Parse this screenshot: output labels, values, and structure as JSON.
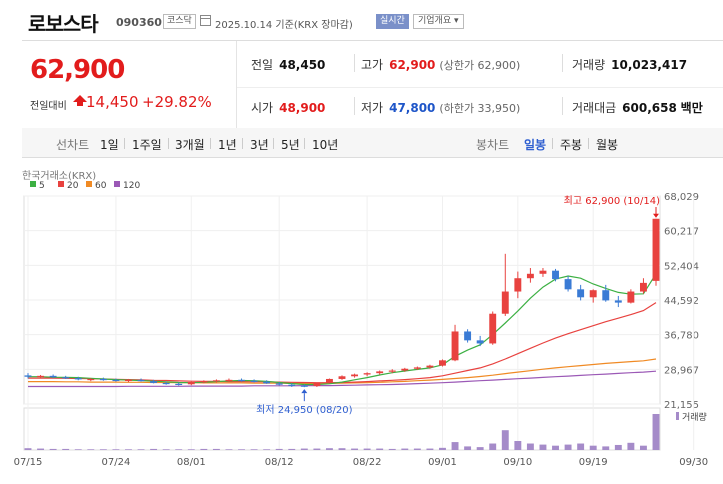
{
  "header": {
    "name": "로보스타",
    "code": "090360",
    "market_badge": "코스닥",
    "date": "2025.10.14 기준(KRX 장마감)",
    "live_label": "실시간",
    "info_label": "기업개요 ▾",
    "calendar_icon": "calendar-icon"
  },
  "summary": {
    "price": "62,900",
    "change_label": "전일대비",
    "change_amount": "14,450",
    "change_rate": "+29.82%",
    "change_direction_icon": "up-arrow-icon",
    "prev_close_label": "전일",
    "prev_close": "48,450",
    "high_label": "고가",
    "high": "62,900",
    "upper_limit": "(상한가 62,900)",
    "volume_label": "거래량",
    "volume": "10,023,417",
    "open_label": "시가",
    "open": "48,900",
    "low_label": "저가",
    "low": "47,800",
    "lower_limit": "(하한가 33,950)",
    "turnover_label": "거래대금",
    "turnover": "600,658",
    "turnover_unit": "백만"
  },
  "toolbar": {
    "line_chart": "선차트",
    "periods": [
      "1일",
      "1주일",
      "3개월",
      "1년",
      "3년",
      "5년",
      "10년"
    ],
    "candle_chart": "봉차트",
    "candle_periods": [
      "일봉",
      "주봉",
      "월봉"
    ],
    "active_candle": "일봉"
  },
  "chart_data": {
    "type": "candlestick",
    "source_label": "한국거래소(KRX)",
    "legend": [
      {
        "name": "5",
        "color": "#3cb043"
      },
      {
        "name": "20",
        "color": "#e8423f"
      },
      {
        "name": "60",
        "color": "#f08a24"
      },
      {
        "name": "120",
        "color": "#9b59b6"
      }
    ],
    "y_ticks": [
      "68,029",
      "60,217",
      "52,404",
      "44,592",
      "36,780",
      "28,967",
      "21,155"
    ],
    "ylim": [
      21155,
      68029
    ],
    "x_ticks": [
      "07/15",
      "07/24",
      "08/01",
      "08/12",
      "08/22",
      "09/01",
      "09/10",
      "09/19",
      "09/30"
    ],
    "x_tick_index": [
      0,
      7,
      13,
      20,
      27,
      33,
      39,
      45,
      53
    ],
    "high_annotation": "최고 62,900 (10/14)",
    "low_annotation": "최저 24,950 (08/20)",
    "volume_label": "거래량",
    "candles": [
      [
        27600,
        28100,
        26900,
        27300
      ],
      [
        27300,
        27700,
        26900,
        27500
      ],
      [
        27500,
        27800,
        27000,
        27200
      ],
      [
        27200,
        27500,
        26800,
        27000
      ],
      [
        27000,
        27300,
        26500,
        26700
      ],
      [
        26700,
        27000,
        26300,
        26800
      ],
      [
        26800,
        27100,
        26400,
        26600
      ],
      [
        26600,
        26900,
        26200,
        26400
      ],
      [
        26400,
        26800,
        26100,
        26600
      ],
      [
        26600,
        26900,
        26200,
        26300
      ],
      [
        26300,
        26600,
        25800,
        25900
      ],
      [
        25900,
        26200,
        25500,
        25700
      ],
      [
        25700,
        26000,
        25300,
        25600
      ],
      [
        25600,
        26200,
        25400,
        26100
      ],
      [
        26100,
        26500,
        25800,
        26300
      ],
      [
        26300,
        26700,
        26000,
        26500
      ],
      [
        26500,
        26900,
        26200,
        26600
      ],
      [
        26600,
        26900,
        26200,
        26400
      ],
      [
        26400,
        26700,
        26000,
        26200
      ],
      [
        26200,
        26500,
        25700,
        25800
      ],
      [
        25800,
        26100,
        25300,
        25500
      ],
      [
        25500,
        25800,
        25000,
        25300
      ],
      [
        25300,
        25600,
        24950,
        25200
      ],
      [
        25200,
        26000,
        25000,
        25900
      ],
      [
        25900,
        26900,
        25800,
        26800
      ],
      [
        26800,
        27600,
        26600,
        27400
      ],
      [
        27400,
        28000,
        27100,
        27800
      ],
      [
        27800,
        28300,
        27400,
        28100
      ],
      [
        28100,
        28700,
        27800,
        28500
      ],
      [
        28500,
        29000,
        28100,
        28700
      ],
      [
        28700,
        29300,
        28400,
        29100
      ],
      [
        29100,
        29600,
        28800,
        29400
      ],
      [
        29400,
        30000,
        29100,
        29800
      ],
      [
        29800,
        31200,
        29600,
        31000
      ],
      [
        31000,
        39000,
        30800,
        37500
      ],
      [
        37500,
        38000,
        35000,
        35500
      ],
      [
        35500,
        36500,
        34200,
        34800
      ],
      [
        34800,
        42000,
        34500,
        41500
      ],
      [
        41500,
        55000,
        41000,
        46500
      ],
      [
        46500,
        51000,
        45000,
        49500
      ],
      [
        49500,
        51800,
        48500,
        50500
      ],
      [
        50500,
        51800,
        49800,
        51200
      ],
      [
        51200,
        51600,
        48800,
        49300
      ],
      [
        49300,
        50000,
        46500,
        47000
      ],
      [
        47000,
        48000,
        44500,
        45200
      ],
      [
        45200,
        47000,
        44000,
        46800
      ],
      [
        46800,
        48000,
        44200,
        44500
      ],
      [
        44500,
        45500,
        43000,
        44000
      ],
      [
        44000,
        47000,
        43800,
        46500
      ],
      [
        46500,
        49500,
        46000,
        48450
      ],
      [
        48900,
        62900,
        47800,
        62900
      ]
    ],
    "ma5": [
      27300,
      27300,
      27200,
      27150,
      27100,
      26950,
      26800,
      26650,
      26550,
      26450,
      26300,
      26150,
      26000,
      25950,
      26050,
      26200,
      26350,
      26450,
      26400,
      26250,
      26000,
      25750,
      25550,
      25550,
      25700,
      26100,
      26600,
      27100,
      27700,
      28200,
      28600,
      28950,
      29300,
      30000,
      31900,
      33300,
      34500,
      36800,
      39400,
      42100,
      45000,
      47500,
      49300,
      50000,
      49500,
      48200,
      47200,
      46300,
      45900,
      46000,
      50500
    ],
    "ma20": [
      27000,
      27000,
      27000,
      26950,
      26900,
      26850,
      26800,
      26700,
      26650,
      26600,
      26500,
      26450,
      26350,
      26300,
      26250,
      26250,
      26200,
      26200,
      26150,
      26150,
      26100,
      26050,
      26000,
      25950,
      25950,
      26000,
      26100,
      26200,
      26350,
      26500,
      26650,
      26850,
      27100,
      27500,
      28100,
      28700,
      29300,
      30200,
      31300,
      32500,
      33700,
      34900,
      36000,
      37000,
      37900,
      38800,
      39700,
      40500,
      41300,
      42200,
      44000
    ],
    "ma60": [
      26200,
      26200,
      26200,
      26150,
      26150,
      26100,
      26100,
      26100,
      26050,
      26050,
      26000,
      26000,
      25950,
      25950,
      25900,
      25900,
      25900,
      25900,
      25850,
      25850,
      25850,
      25800,
      25800,
      25800,
      25800,
      25850,
      25900,
      25950,
      26050,
      26150,
      26250,
      26400,
      26550,
      26700,
      26900,
      27100,
      27350,
      27650,
      28000,
      28350,
      28650,
      29000,
      29300,
      29550,
      29800,
      30050,
      30300,
      30500,
      30700,
      30900,
      31300
    ],
    "ma120": [
      25100,
      25100,
      25100,
      25100,
      25100,
      25100,
      25100,
      25100,
      25150,
      25150,
      25150,
      25150,
      25150,
      25200,
      25200,
      25200,
      25200,
      25200,
      25250,
      25250,
      25250,
      25250,
      25300,
      25300,
      25300,
      25350,
      25400,
      25450,
      25500,
      25550,
      25650,
      25750,
      25850,
      25950,
      26100,
      26250,
      26400,
      26550,
      26700,
      26850,
      27000,
      27150,
      27300,
      27450,
      27600,
      27750,
      27900,
      28050,
      28200,
      28350,
      28550
    ],
    "volumes": [
      0.05,
      0.04,
      0.03,
      0.03,
      0.02,
      0.02,
      0.02,
      0.02,
      0.02,
      0.02,
      0.03,
      0.02,
      0.02,
      0.02,
      0.03,
      0.03,
      0.02,
      0.02,
      0.02,
      0.02,
      0.03,
      0.03,
      0.04,
      0.04,
      0.05,
      0.05,
      0.04,
      0.04,
      0.04,
      0.03,
      0.04,
      0.04,
      0.04,
      0.06,
      0.22,
      0.1,
      0.08,
      0.18,
      0.55,
      0.25,
      0.18,
      0.15,
      0.12,
      0.15,
      0.18,
      0.12,
      0.1,
      0.14,
      0.2,
      0.12,
      1.0
    ]
  }
}
